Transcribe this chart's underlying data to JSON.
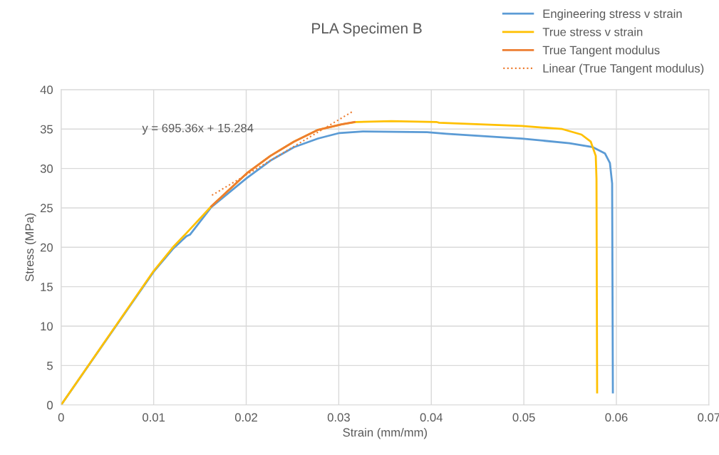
{
  "chart_data": {
    "type": "line",
    "title": "PLA Specimen B",
    "xlabel": "Strain (mm/mm)",
    "ylabel": "Stress (MPa)",
    "annotations": [
      "y = 695.36x + 15.284"
    ],
    "xlim": [
      0,
      0.07
    ],
    "xticks": [
      0,
      0.01,
      0.02,
      0.03,
      0.04,
      0.05,
      0.06,
      0.07
    ],
    "ylim": [
      0,
      40
    ],
    "yticks": [
      0,
      5,
      10,
      15,
      20,
      25,
      30,
      35,
      40
    ],
    "grid": true,
    "legend": "top right",
    "series": [
      {
        "name": "Engineering stress v strain",
        "color": "#5b9bd5",
        "x": [
          0,
          0.01,
          0.01208,
          0.01354,
          0.01392,
          0.01623,
          0.02008,
          0.02262,
          0.02515,
          0.02777,
          0.03008,
          0.0326,
          0.03954,
          0.04162,
          0.04977,
          0.05492,
          0.05746,
          0.05877,
          0.0593,
          0.05954,
          0.05962
        ],
        "values": [
          0,
          16.9,
          19.8,
          21.4,
          21.6,
          25.1,
          28.8,
          31.0,
          32.7,
          33.8,
          34.5,
          34.7,
          34.6,
          34.4,
          33.8,
          33.2,
          32.7,
          31.9,
          30.7,
          28.1,
          1.6
        ]
      },
      {
        "name": "True stress v strain",
        "color": "#ffc000",
        "x": [
          0,
          0.01,
          0.01208,
          0.01354,
          0.01623,
          0.02008,
          0.02262,
          0.02515,
          0.02777,
          0.03031,
          0.03185,
          0.03569,
          0.04054,
          0.04085,
          0.04977,
          0.05415,
          0.05623,
          0.05723,
          0.05777,
          0.05785,
          0.05792
        ],
        "values": [
          0,
          17.0,
          20.0,
          21.8,
          25.2,
          29.4,
          31.6,
          33.4,
          34.9,
          35.6,
          35.9,
          36.0,
          35.9,
          35.8,
          35.4,
          35.0,
          34.3,
          33.4,
          31.6,
          28.7,
          1.6
        ]
      },
      {
        "name": "True Tangent modulus",
        "color": "#ed7d31",
        "x": [
          0.01623,
          0.02008,
          0.02262,
          0.02515,
          0.02777,
          0.03031,
          0.03169
        ],
        "values": [
          25.2,
          29.4,
          31.6,
          33.4,
          34.9,
          35.6,
          35.9
        ]
      },
      {
        "name": "Linear (True Tangent modulus)",
        "color": "#ed7d31",
        "line_style": "dotted",
        "x": [
          0.0163,
          0.0316
        ],
        "values": [
          26.6,
          37.3
        ]
      }
    ]
  }
}
